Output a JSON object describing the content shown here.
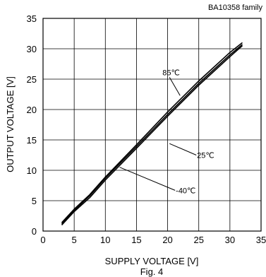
{
  "chart_data": {
    "type": "line",
    "title": "BA10358 family",
    "caption": "Fig. 4",
    "xlabel": "SUPPLY VOLTAGE [V]",
    "ylabel": "OUTPUT VOLTAGE [V]",
    "xlim": [
      0,
      35
    ],
    "ylim": [
      0,
      35
    ],
    "xticks": [
      0,
      5,
      10,
      15,
      20,
      25,
      30,
      35
    ],
    "yticks": [
      0,
      5,
      10,
      15,
      20,
      25,
      30,
      35
    ],
    "grid": true,
    "series": [
      {
        "name": "85℃",
        "x": [
          3,
          5,
          7.5,
          10,
          15,
          20,
          25,
          30,
          32
        ],
        "y": [
          1.4,
          3.6,
          6.0,
          8.9,
          14.2,
          19.6,
          24.7,
          29.4,
          31.0
        ]
      },
      {
        "name": "25℃",
        "x": [
          3,
          5,
          7.5,
          10,
          15,
          20,
          25,
          30,
          32
        ],
        "y": [
          1.2,
          3.4,
          5.8,
          8.7,
          13.9,
          19.2,
          24.3,
          29.0,
          30.7
        ]
      },
      {
        "name": "-40℃",
        "x": [
          3,
          5,
          7.5,
          10,
          15,
          20,
          25,
          30,
          32
        ],
        "y": [
          1.0,
          3.2,
          5.5,
          8.4,
          13.6,
          18.9,
          24.0,
          28.7,
          30.5
        ]
      }
    ],
    "labels": [
      {
        "text": "85℃",
        "series": 0,
        "anchor_x": 20.3,
        "anchor_y": 25.3,
        "at_x": 22.0,
        "at_y": 22.3
      },
      {
        "text": "25℃",
        "series": 1,
        "anchor_x": 24.6,
        "anchor_y": 12.5,
        "at_x": 20.3,
        "at_y": 14.4
      },
      {
        "text": "-40℃",
        "series": 2,
        "anchor_x": 21.2,
        "anchor_y": 6.7,
        "at_x": 12.3,
        "at_y": 10.5
      }
    ]
  }
}
